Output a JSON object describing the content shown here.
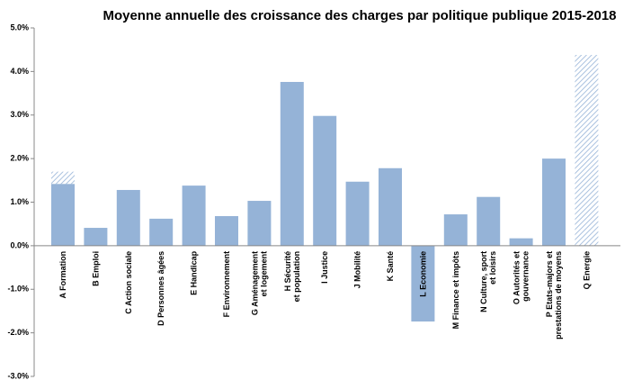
{
  "chart_data": {
    "type": "bar",
    "title": "Moyenne annuelle des croissance des charges par politique publique 2015-2018",
    "categories": [
      "A Formation",
      "B Emploi",
      "C Action sociale",
      "D Personnes âgées",
      "E Handicap",
      "F Environnement",
      "G Aménagement\net logement",
      "H Sécurité\net population",
      "I Justice",
      "J Mobilité",
      "K Santé",
      "L Economie",
      "M Finance et impôts",
      "N Culture, sport\net loisirs",
      "O Autorités et\ngouvernance",
      "P Etats-majors et\nprestations de moyens",
      "Q Energie"
    ],
    "series": [
      {
        "color": "#95b3d7",
        "pattern": "solid",
        "values": [
          1.42,
          0.41,
          1.28,
          0.62,
          1.38,
          0.68,
          1.03,
          3.76,
          2.98,
          1.47,
          1.78,
          -1.74,
          0.72,
          1.12,
          0.17,
          2.0,
          null
        ]
      },
      {
        "color": "#95b3d7",
        "pattern": "hatch",
        "values": [
          0.28,
          null,
          null,
          null,
          null,
          null,
          null,
          null,
          null,
          null,
          null,
          null,
          null,
          null,
          null,
          null,
          4.38
        ]
      }
    ],
    "ylim": [
      -3,
      5
    ],
    "yticks": [
      {
        "value": -3,
        "label": "-3.0%"
      },
      {
        "value": -2,
        "label": "-2.0%"
      },
      {
        "value": -1,
        "label": "-1.0%"
      },
      {
        "value": 0,
        "label": "0.0%"
      },
      {
        "value": 1,
        "label": "1.0%"
      },
      {
        "value": 2,
        "label": "2.0%"
      },
      {
        "value": 3,
        "label": "3.0%"
      },
      {
        "value": 4,
        "label": "4.0%"
      },
      {
        "value": 5,
        "label": "5.0%"
      }
    ],
    "grid": false
  }
}
